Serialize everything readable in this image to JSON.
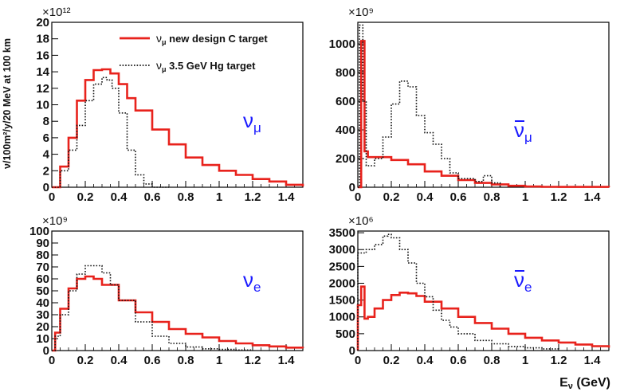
{
  "figure": {
    "ylabel": "ν/100m²/y/20 MeV at 100 km",
    "xlabel": "Eν (GeV)",
    "colors": {
      "red": "#e8221c",
      "black": "#111111",
      "blue": "#1a1aff"
    }
  },
  "legend": {
    "entries": [
      {
        "label": "ν_μ new design C target",
        "sub": "μ",
        "text": " new design C target",
        "style": "solid",
        "color": "#e8221c"
      },
      {
        "label": "ν_μ 3.5 GeV Hg target",
        "sub": "μ",
        "text": " 3.5 GeV Hg target",
        "style": "dotted",
        "color": "#111111"
      }
    ]
  },
  "chart_data": [
    {
      "type": "line",
      "title": "νμ",
      "symbol": "ν",
      "symbol_sub": "μ",
      "bar": false,
      "exponent": "×10¹²",
      "xlim": [
        0,
        1.5
      ],
      "ylim": [
        0,
        20
      ],
      "xticks": [
        "0",
        "0.2",
        "0.4",
        "0.6",
        "0.8",
        "1",
        "1.2",
        "1.4"
      ],
      "xtick_values": [
        0,
        0.2,
        0.4,
        0.6,
        0.8,
        1.0,
        1.2,
        1.4
      ],
      "yticks": [
        "0",
        "2",
        "4",
        "6",
        "8",
        "10",
        "12",
        "14",
        "16",
        "18",
        "20"
      ],
      "ytick_values": [
        0,
        2,
        4,
        6,
        8,
        10,
        12,
        14,
        16,
        18,
        20
      ],
      "series": [
        {
          "name": "νμ new design C target",
          "style": "solid",
          "color": "#e8221c",
          "x": [
            0.0,
            0.05,
            0.1,
            0.15,
            0.2,
            0.25,
            0.3,
            0.35,
            0.4,
            0.45,
            0.5,
            0.6,
            0.7,
            0.8,
            0.9,
            1.0,
            1.1,
            1.2,
            1.3,
            1.4,
            1.5
          ],
          "y": [
            0.0,
            2.5,
            6.0,
            10.5,
            13.0,
            14.2,
            14.3,
            13.8,
            12.5,
            10.8,
            9.3,
            7.0,
            5.2,
            3.6,
            2.7,
            2.0,
            1.5,
            1.0,
            0.7,
            0.3,
            0.1
          ]
        },
        {
          "name": "νμ 3.5 GeV Hg target",
          "style": "dotted",
          "color": "#111111",
          "x": [
            0.0,
            0.05,
            0.1,
            0.15,
            0.2,
            0.25,
            0.3,
            0.33,
            0.36,
            0.4,
            0.45,
            0.5,
            0.55,
            0.6,
            0.7
          ],
          "y": [
            0.0,
            2.0,
            4.5,
            7.5,
            10.5,
            12.5,
            13.3,
            13.0,
            12.0,
            9.0,
            4.5,
            1.5,
            0.4,
            0.0,
            0.0
          ]
        }
      ]
    },
    {
      "type": "line",
      "title": "ν̄μ",
      "symbol": "ν",
      "symbol_sub": "μ",
      "bar": true,
      "exponent": "×10⁹",
      "xlim": [
        0,
        1.5
      ],
      "ylim": [
        0,
        1150
      ],
      "xticks": [
        "0",
        "0.2",
        "0.4",
        "0.6",
        "0.8",
        "1",
        "1.2",
        "1.4"
      ],
      "xtick_values": [
        0,
        0.2,
        0.4,
        0.6,
        0.8,
        1.0,
        1.2,
        1.4
      ],
      "yticks": [
        "0",
        "200",
        "400",
        "600",
        "800",
        "1000"
      ],
      "ytick_values": [
        0,
        200,
        400,
        600,
        800,
        1000
      ],
      "series": [
        {
          "name": "ν̄μ new design C target",
          "style": "solid",
          "color": "#e8221c",
          "x": [
            0.0,
            0.02,
            0.04,
            0.06,
            0.1,
            0.2,
            0.3,
            0.4,
            0.5,
            0.6,
            0.7,
            0.8,
            0.9,
            1.0,
            1.1,
            1.2,
            1.5
          ],
          "y": [
            0,
            1020,
            250,
            210,
            210,
            190,
            160,
            110,
            80,
            50,
            30,
            20,
            10,
            5,
            3,
            2,
            0
          ]
        },
        {
          "name": "ν̄μ 3.5 GeV Hg target",
          "style": "dotted",
          "color": "#111111",
          "x": [
            0.0,
            0.01,
            0.03,
            0.05,
            0.1,
            0.15,
            0.2,
            0.25,
            0.28,
            0.3,
            0.35,
            0.4,
            0.45,
            0.5,
            0.55,
            0.6,
            0.7,
            0.75,
            0.8,
            0.85
          ],
          "y": [
            0,
            1130,
            600,
            150,
            200,
            350,
            580,
            740,
            740,
            700,
            500,
            380,
            300,
            200,
            100,
            60,
            40,
            80,
            30,
            0
          ]
        }
      ]
    },
    {
      "type": "line",
      "title": "νe",
      "symbol": "ν",
      "symbol_sub": "e",
      "bar": false,
      "exponent": "×10⁹",
      "xlim": [
        0,
        1.5
      ],
      "ylim": [
        0,
        100
      ],
      "xticks": [
        "0",
        "0.2",
        "0.4",
        "0.6",
        "0.8",
        "1",
        "1.2",
        "1.4"
      ],
      "xtick_values": [
        0,
        0.2,
        0.4,
        0.6,
        0.8,
        1.0,
        1.2,
        1.4
      ],
      "yticks": [
        "0",
        "10",
        "20",
        "30",
        "40",
        "50",
        "60",
        "70",
        "80",
        "90",
        "100"
      ],
      "ytick_values": [
        0,
        10,
        20,
        30,
        40,
        50,
        60,
        70,
        80,
        90,
        100
      ],
      "series": [
        {
          "name": "νe new design C target",
          "style": "solid",
          "color": "#e8221c",
          "x": [
            0.0,
            0.02,
            0.05,
            0.1,
            0.15,
            0.2,
            0.25,
            0.3,
            0.4,
            0.5,
            0.6,
            0.7,
            0.8,
            0.9,
            1.0,
            1.1,
            1.2,
            1.3,
            1.4,
            1.5
          ],
          "y": [
            0,
            15,
            35,
            52,
            60,
            62,
            60,
            55,
            42,
            32,
            24,
            18,
            14,
            11,
            8,
            6,
            4.5,
            3.5,
            2.5,
            2
          ]
        },
        {
          "name": "νe 3.5 GeV Hg target",
          "style": "dotted",
          "color": "#111111",
          "x": [
            0.0,
            0.02,
            0.05,
            0.1,
            0.15,
            0.2,
            0.25,
            0.3,
            0.35,
            0.4,
            0.5,
            0.6,
            0.7,
            0.8,
            0.9,
            1.0,
            1.1,
            1.2
          ],
          "y": [
            0,
            12,
            30,
            50,
            64,
            71,
            71,
            65,
            55,
            42,
            24,
            12,
            6,
            3,
            1.5,
            1,
            0.5,
            0
          ]
        }
      ]
    },
    {
      "type": "line",
      "title": "ν̄e",
      "symbol": "ν",
      "symbol_sub": "e",
      "bar": true,
      "exponent": "×10⁶",
      "xlim": [
        0,
        1.5
      ],
      "ylim": [
        0,
        3550
      ],
      "xticks": [
        "0",
        "0.2",
        "0.4",
        "0.6",
        "0.8",
        "1",
        "1.2",
        "1.4"
      ],
      "xtick_values": [
        0,
        0.2,
        0.4,
        0.6,
        0.8,
        1.0,
        1.2,
        1.4
      ],
      "yticks": [
        "0",
        "500",
        "1000",
        "1500",
        "2000",
        "2500",
        "3000",
        "3500"
      ],
      "ytick_values": [
        0,
        500,
        1000,
        1500,
        2000,
        2500,
        3000,
        3500
      ],
      "series": [
        {
          "name": "ν̄e new design C target",
          "style": "solid",
          "color": "#e8221c",
          "x": [
            0.0,
            0.02,
            0.04,
            0.06,
            0.1,
            0.15,
            0.2,
            0.25,
            0.3,
            0.35,
            0.4,
            0.5,
            0.6,
            0.7,
            0.8,
            0.9,
            1.0,
            1.1,
            1.2,
            1.3,
            1.4,
            1.5
          ],
          "y": [
            1350,
            1900,
            950,
            1000,
            1250,
            1500,
            1650,
            1720,
            1700,
            1620,
            1450,
            1250,
            1000,
            820,
            650,
            500,
            380,
            300,
            240,
            180,
            130,
            90
          ]
        },
        {
          "name": "ν̄e 3.5 GeV Hg target",
          "style": "dotted",
          "color": "#111111",
          "x": [
            0.0,
            0.05,
            0.1,
            0.15,
            0.18,
            0.2,
            0.25,
            0.3,
            0.35,
            0.4,
            0.45,
            0.5,
            0.55,
            0.6,
            0.7,
            0.8,
            0.9,
            1.0,
            1.1,
            1.2
          ],
          "y": [
            2900,
            3000,
            3150,
            3400,
            3450,
            3350,
            3000,
            2600,
            2000,
            1600,
            1200,
            900,
            700,
            500,
            300,
            200,
            120,
            80,
            50,
            30
          ]
        }
      ]
    }
  ]
}
